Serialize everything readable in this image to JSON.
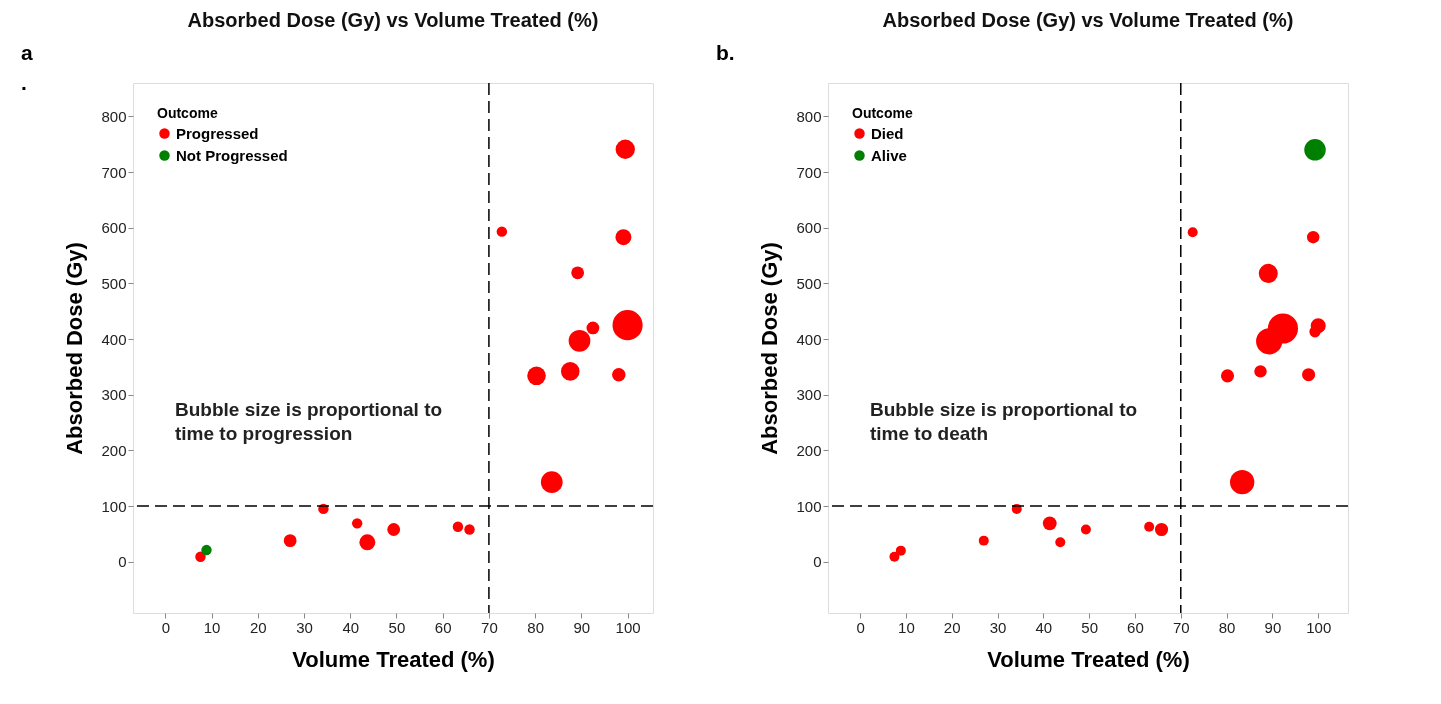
{
  "chart_data": [
    {
      "type": "bubble",
      "title": "Absorbed Dose (Gy) vs Volume Treated (%)",
      "xlabel": "Volume Treated (%)",
      "ylabel": "Absorbed Dose (Gy)",
      "legend_title": "Outcome",
      "legend": "top left",
      "grid": false,
      "annotations": [
        "a\n.",
        "Bubble size is proportional to\ntime to progression"
      ],
      "xlim": [
        -7,
        105.5
      ],
      "ylim": [
        -92,
        860
      ],
      "xticks": [
        0,
        10,
        20,
        30,
        40,
        50,
        60,
        70,
        80,
        90,
        100
      ],
      "yticks": [
        0,
        100,
        200,
        300,
        400,
        500,
        600,
        700,
        800
      ],
      "ref_lines": [
        {
          "axis": "x",
          "value": 70,
          "line_style": "dashed",
          "color": "#000000"
        },
        {
          "axis": "y",
          "value": 100,
          "line_style": "dashed",
          "color": "#000000"
        }
      ],
      "series": [
        {
          "name": "Progressed",
          "color": "#ff0000",
          "x": [
            99.5,
            72.8,
            99.1,
            89.2,
            100.0,
            92.5,
            89.6,
            80.3,
            87.6,
            98.1,
            83.6,
            34.2,
            41.5,
            43.7,
            49.4,
            63.3,
            65.8,
            27.0,
            7.6
          ],
          "values": [
            741,
            593,
            583,
            519,
            425,
            420,
            397,
            334,
            342,
            336,
            143,
            95,
            69,
            35,
            58,
            63,
            58,
            38,
            9
          ],
          "sizes": [
            0.41,
            0.12,
            0.28,
            0.18,
            1,
            0.18,
            0.52,
            0.38,
            0.38,
            0.2,
            0.52,
            0.12,
            0.12,
            0.28,
            0.18,
            0.12,
            0.12,
            0.18,
            0.12
          ]
        },
        {
          "name": "Not Progressed",
          "color": "#008000",
          "x": [
            8.9
          ],
          "values": [
            21
          ],
          "sizes": [
            0.12
          ]
        }
      ]
    },
    {
      "type": "bubble",
      "title": "Absorbed Dose (Gy) vs Volume Treated (%)",
      "xlabel": "Volume Treated (%)",
      "ylabel": "Absorbed Dose (Gy)",
      "legend_title": "Outcome",
      "legend": "top left",
      "grid": false,
      "annotations": [
        "b.",
        "Bubble size is proportional to\ntime to death"
      ],
      "xlim": [
        -7,
        106.5
      ],
      "ylim": [
        -92,
        860
      ],
      "xticks": [
        0,
        10,
        20,
        30,
        40,
        50,
        60,
        70,
        80,
        90,
        100
      ],
      "yticks": [
        0,
        100,
        200,
        300,
        400,
        500,
        600,
        700,
        800
      ],
      "ref_lines": [
        {
          "axis": "x",
          "value": 70,
          "line_style": "dashed",
          "color": "#000000"
        },
        {
          "axis": "y",
          "value": 100,
          "line_style": "dashed",
          "color": "#000000"
        }
      ],
      "series": [
        {
          "name": "Died",
          "color": "#ff0000",
          "x": [
            72.6,
            98.9,
            89.1,
            92.3,
            100.0,
            99.3,
            89.3,
            80.2,
            87.4,
            97.9,
            83.4,
            34.2,
            41.4,
            43.7,
            49.3,
            63.1,
            65.8,
            27.0,
            7.5,
            8.9
          ],
          "values": [
            592,
            583,
            518,
            419,
            424,
            413,
            396,
            334,
            342,
            336,
            143,
            95,
            69,
            35,
            58,
            63,
            58,
            38,
            9,
            20
          ],
          "sizes": [
            0.11,
            0.17,
            0.4,
            1,
            0.25,
            0.14,
            0.76,
            0.19,
            0.17,
            0.19,
            0.65,
            0.11,
            0.21,
            0.11,
            0.11,
            0.11,
            0.19,
            0.11,
            0.11,
            0.11
          ]
        },
        {
          "name": "Alive",
          "color": "#008000",
          "x": [
            99.3
          ],
          "values": [
            740
          ],
          "sizes": [
            0.51
          ]
        }
      ]
    }
  ]
}
